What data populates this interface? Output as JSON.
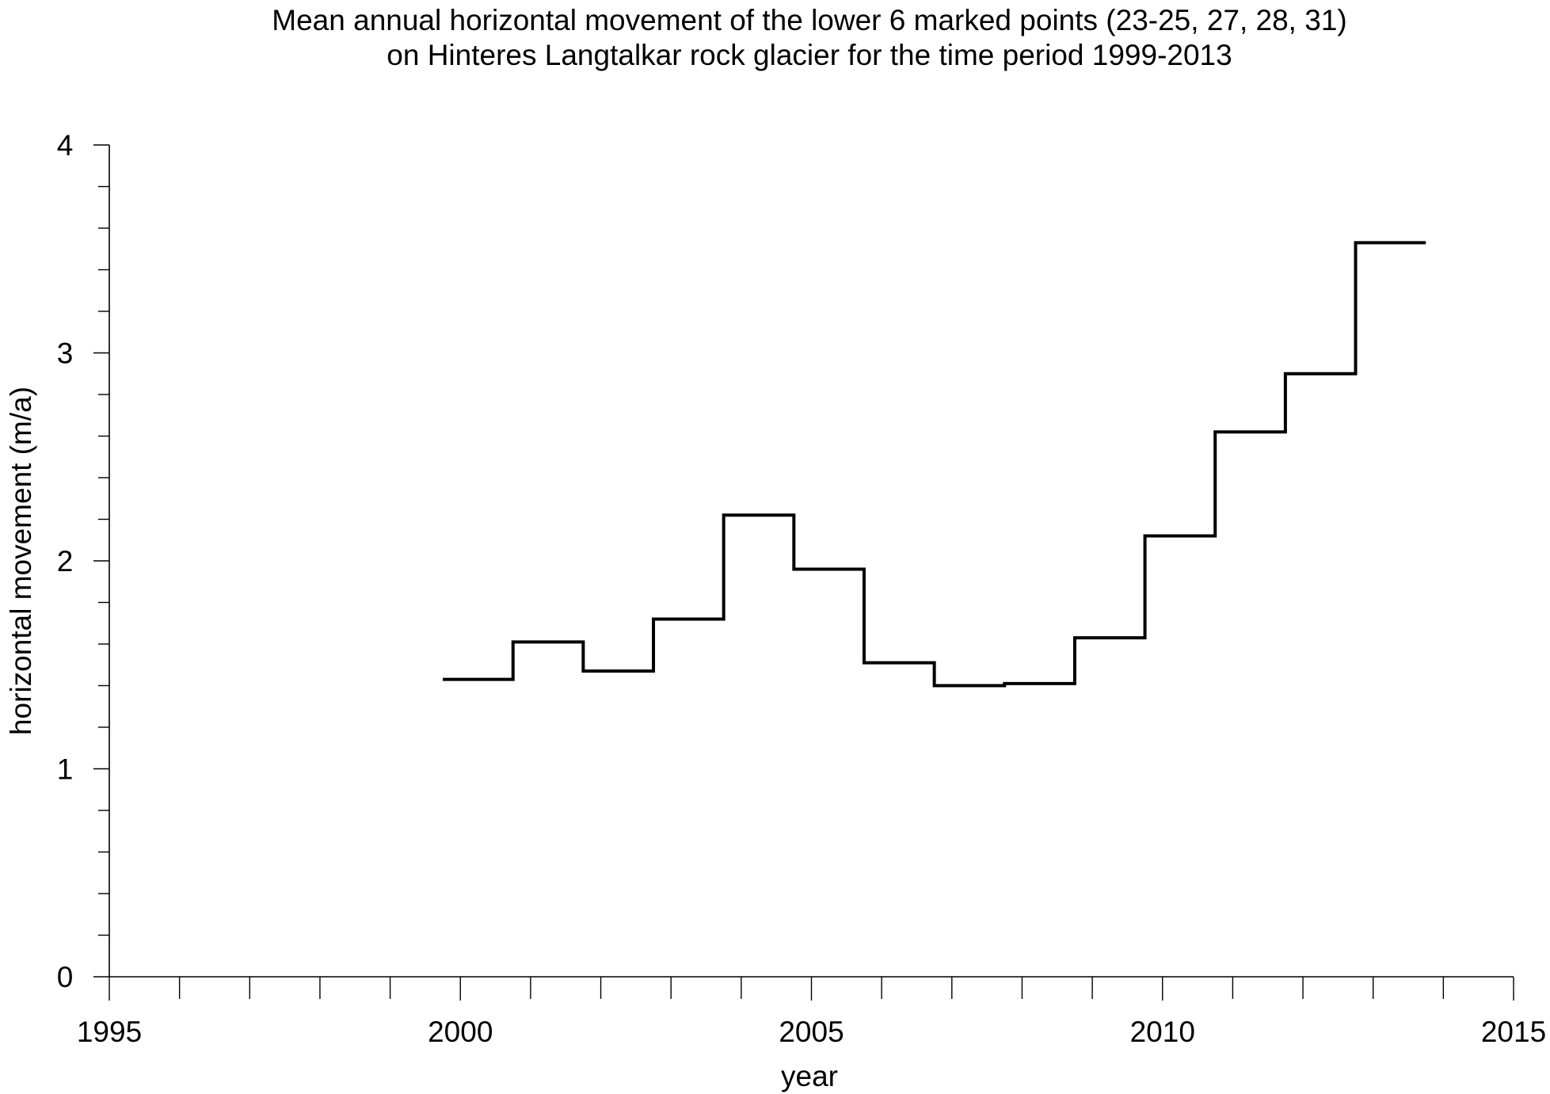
{
  "chart_data": {
    "type": "line",
    "step": true,
    "title": "Mean annual horizontal movement of the lower 6 marked points (23-25, 27, 28, 31)",
    "subtitle": "on Hinteres Langtalkar rock glacier for the time period 1999-2013",
    "xlabel": "year",
    "ylabel": "horizontal movement (m/a)",
    "xlim": [
      1995,
      2015
    ],
    "ylim": [
      0,
      4
    ],
    "x_ticks": [
      "1995",
      "2000",
      "2005",
      "2010",
      "2015"
    ],
    "y_ticks": [
      "0",
      "1",
      "2",
      "3",
      "4"
    ],
    "x_minor_step": 1,
    "y_minor_step": 0.2,
    "grid": false,
    "line_color": "#000000",
    "series": [
      {
        "intervals": [
          {
            "start": 1999.75,
            "end": 2000.75,
            "value": 1.43
          },
          {
            "start": 2000.75,
            "end": 2001.75,
            "value": 1.61
          },
          {
            "start": 2001.75,
            "end": 2002.75,
            "value": 1.47
          },
          {
            "start": 2002.75,
            "end": 2003.75,
            "value": 1.72
          },
          {
            "start": 2003.75,
            "end": 2004.75,
            "value": 2.22
          },
          {
            "start": 2004.75,
            "end": 2005.75,
            "value": 1.96
          },
          {
            "start": 2005.75,
            "end": 2006.75,
            "value": 1.51
          },
          {
            "start": 2006.75,
            "end": 2007.75,
            "value": 1.4
          },
          {
            "start": 2007.75,
            "end": 2008.75,
            "value": 1.41
          },
          {
            "start": 2008.75,
            "end": 2009.75,
            "value": 1.63
          },
          {
            "start": 2009.75,
            "end": 2010.75,
            "value": 2.12
          },
          {
            "start": 2010.75,
            "end": 2011.75,
            "value": 2.62
          },
          {
            "start": 2011.75,
            "end": 2012.75,
            "value": 2.9
          },
          {
            "start": 2012.75,
            "end": 2013.75,
            "value": 3.53
          }
        ]
      }
    ]
  }
}
